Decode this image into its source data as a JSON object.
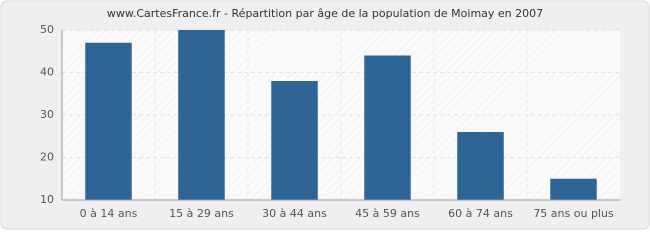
{
  "chart_data": {
    "type": "bar",
    "title": "www.CartesFrance.fr - Répartition par âge de la population de Moimay en 2007",
    "categories": [
      "0 à 14 ans",
      "15 à 29 ans",
      "30 à 44 ans",
      "45 à 59 ans",
      "60 à 74 ans",
      "75 ans ou plus"
    ],
    "values": [
      47,
      50,
      38,
      44,
      26,
      15
    ],
    "color": "#2e6496",
    "ylim": [
      10,
      50
    ],
    "yticks": [
      10,
      20,
      30,
      40,
      50
    ],
    "grid": true
  }
}
